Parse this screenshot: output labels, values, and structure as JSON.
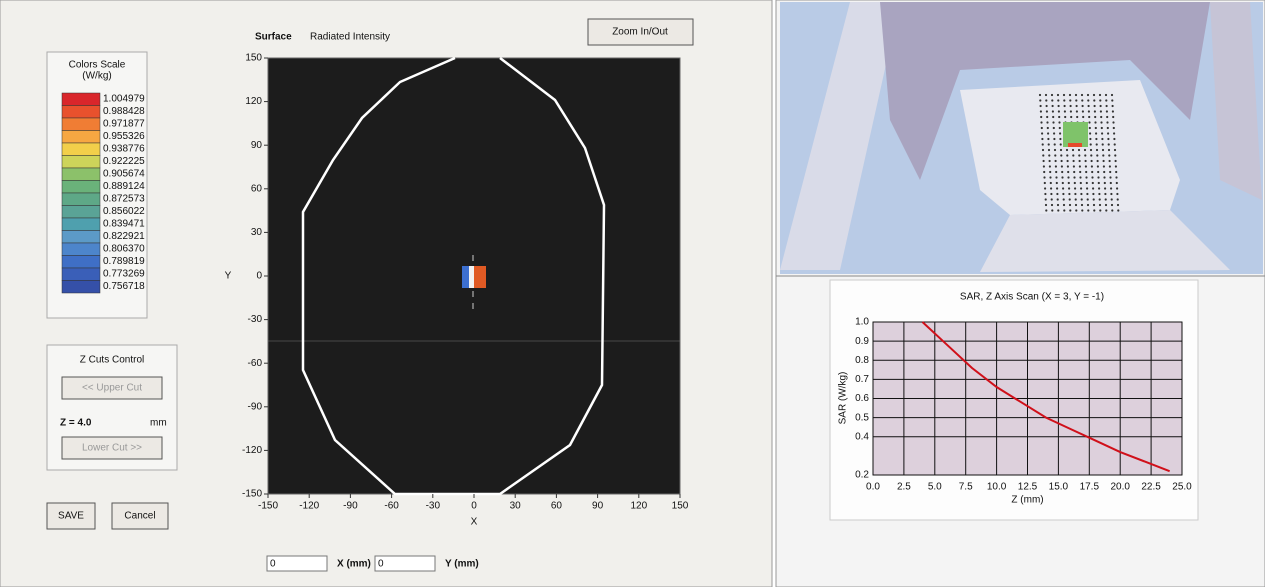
{
  "color_scale": {
    "title": "Colors Scale",
    "unit": "(W/kg)",
    "labels": [
      "1.004979",
      "0.988428",
      "0.971877",
      "0.955326",
      "0.938776",
      "0.922225",
      "0.905674",
      "0.889124",
      "0.872573",
      "0.856022",
      "0.839471",
      "0.822921",
      "0.806370",
      "0.789819",
      "0.773269",
      "0.756718"
    ],
    "colors": [
      "#d9262b",
      "#e8512d",
      "#f07d34",
      "#f6a742",
      "#f2cf4a",
      "#cdd45a",
      "#8cc16a",
      "#6ab27a",
      "#5ea887",
      "#5aa396",
      "#4fa0ae",
      "#5c9ac7",
      "#4d85cb",
      "#3f6fc6",
      "#3a5fb8",
      "#3550a8"
    ]
  },
  "z_cuts": {
    "title": "Z Cuts Control",
    "upper_button": "<< Upper Cut",
    "z_label": "Z = 4.0",
    "z_unit": "mm",
    "lower_button": "Lower Cut >>"
  },
  "buttons": {
    "save": "SAVE",
    "cancel": "Cancel",
    "zoom": "Zoom In/Out"
  },
  "surface_plot": {
    "title": "Surface",
    "subtitle": "Radiated Intensity",
    "xlabel": "X",
    "ylabel": "Y",
    "xlim": [
      -150,
      150
    ],
    "ylim": [
      -150,
      150
    ],
    "xticks": [
      -150,
      -120,
      -90,
      -60,
      -30,
      0,
      30,
      60,
      90,
      120,
      150
    ],
    "yticks": [
      -150,
      -120,
      -90,
      -60,
      -30,
      0,
      30,
      60,
      90,
      120,
      150
    ]
  },
  "position": {
    "x_value": "0",
    "x_label": "X (mm)",
    "y_value": "0",
    "y_label": "Y (mm)"
  },
  "sar_chart": {
    "type": "line",
    "title": "SAR, Z Axis Scan (X = 3, Y = -1)",
    "xlabel": "Z (mm)",
    "ylabel": "SAR (W/kg)",
    "x": [
      4,
      6,
      8,
      10,
      12,
      14,
      16,
      18,
      20,
      22,
      24
    ],
    "values": [
      1.0,
      0.88,
      0.76,
      0.66,
      0.58,
      0.5,
      0.44,
      0.38,
      0.32,
      0.27,
      0.22
    ],
    "color": "#d0101a",
    "xlim": [
      0,
      25
    ],
    "ylim": [
      0.2,
      1.0
    ],
    "xticks": [
      {
        "value": 0,
        "label": "0.0"
      },
      2.5,
      {
        "value": 5,
        "label": "5.0"
      },
      7.5,
      {
        "value": 10,
        "label": "10.0"
      },
      12.5,
      {
        "value": 15,
        "label": "15.0"
      },
      17.5,
      {
        "value": 20,
        "label": "20.0"
      },
      22.5,
      {
        "value": 25,
        "label": "25.0"
      }
    ],
    "yticks": [
      0.2,
      0.4,
      0.5,
      0.6,
      0.7,
      0.8,
      0.9,
      {
        "value": 1,
        "label": "1.0"
      }
    ],
    "grid": true
  }
}
